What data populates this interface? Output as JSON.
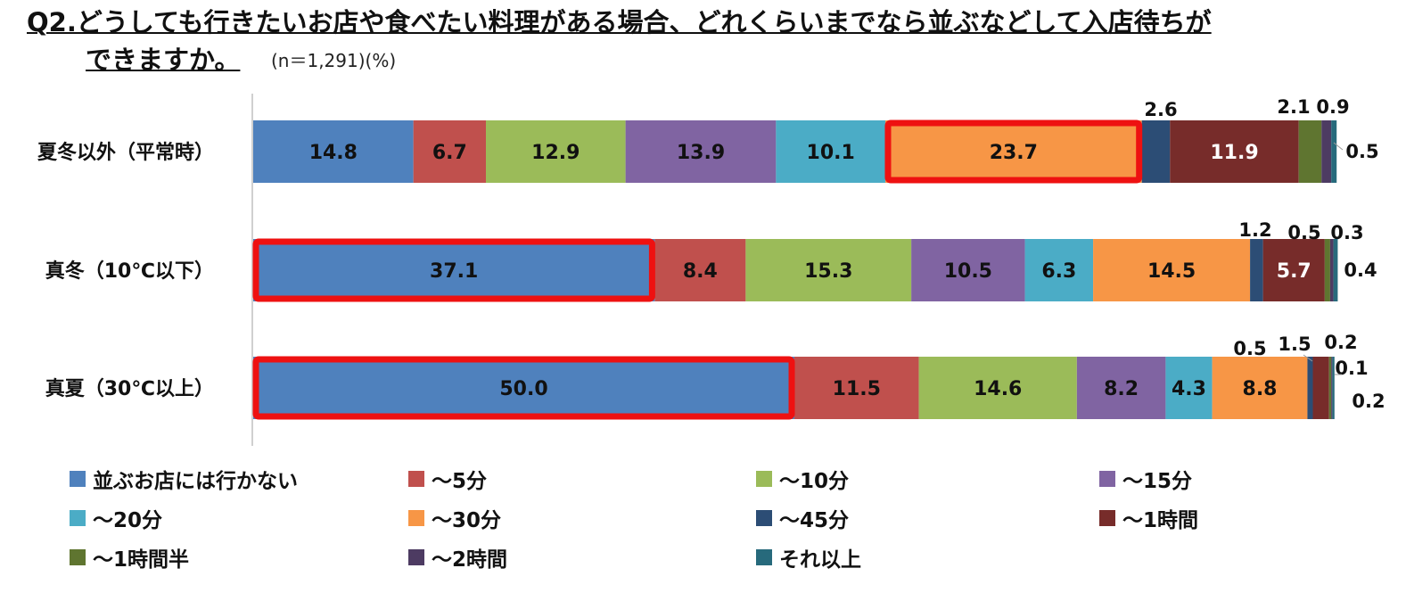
{
  "title": {
    "line1": "Q2.どうしても行きたいお店や食べたい料理がある場合、どれくらいまでなら並ぶなどして入店待ちが",
    "line2": "できますか。",
    "note": "(n＝1,291)(%)"
  },
  "colors": {
    "series": [
      "#4f81bd",
      "#c0504d",
      "#9bbb59",
      "#8064a2",
      "#4bacc6",
      "#f79646",
      "#2c4d75",
      "#772c2a",
      "#5f7530",
      "#4d3b62",
      "#276a7c"
    ],
    "highlight": "#ee1111"
  },
  "chart_data": {
    "type": "bar",
    "orientation": "horizontal",
    "stacked": true,
    "unit": "%",
    "categories": [
      "夏冬以外（平常時）",
      "真冬（10℃以下）",
      "真夏（30℃以上）"
    ],
    "series": [
      {
        "name": "並ぶお店には行かない",
        "values": [
          14.8,
          37.1,
          50.0
        ]
      },
      {
        "name": "～5分",
        "values": [
          6.7,
          8.4,
          11.5
        ]
      },
      {
        "name": "～10分",
        "values": [
          12.9,
          15.3,
          14.6
        ]
      },
      {
        "name": "～15分",
        "values": [
          13.9,
          10.5,
          8.2
        ]
      },
      {
        "name": "～20分",
        "values": [
          10.1,
          6.3,
          4.3
        ]
      },
      {
        "name": "～30分",
        "values": [
          23.7,
          14.5,
          8.8
        ]
      },
      {
        "name": "～45分",
        "values": [
          2.6,
          1.2,
          0.5
        ]
      },
      {
        "name": "～1時間",
        "values": [
          11.9,
          5.7,
          1.5
        ]
      },
      {
        "name": "～1時間半",
        "values": [
          2.1,
          0.5,
          0.2
        ]
      },
      {
        "name": "～2時間",
        "values": [
          0.9,
          0.3,
          0.1
        ]
      },
      {
        "name": "それ以上",
        "values": [
          0.5,
          0.4,
          0.2
        ]
      }
    ],
    "highlighted": [
      {
        "category": "夏冬以外（平常時）",
        "series": "～30分"
      },
      {
        "category": "真冬（10℃以下）",
        "series": "並ぶお店には行かない"
      },
      {
        "category": "真夏（30℃以上）",
        "series": "並ぶお店には行かない"
      }
    ],
    "xlim": [
      0,
      100
    ],
    "legend_position": "bottom",
    "grid": false
  }
}
